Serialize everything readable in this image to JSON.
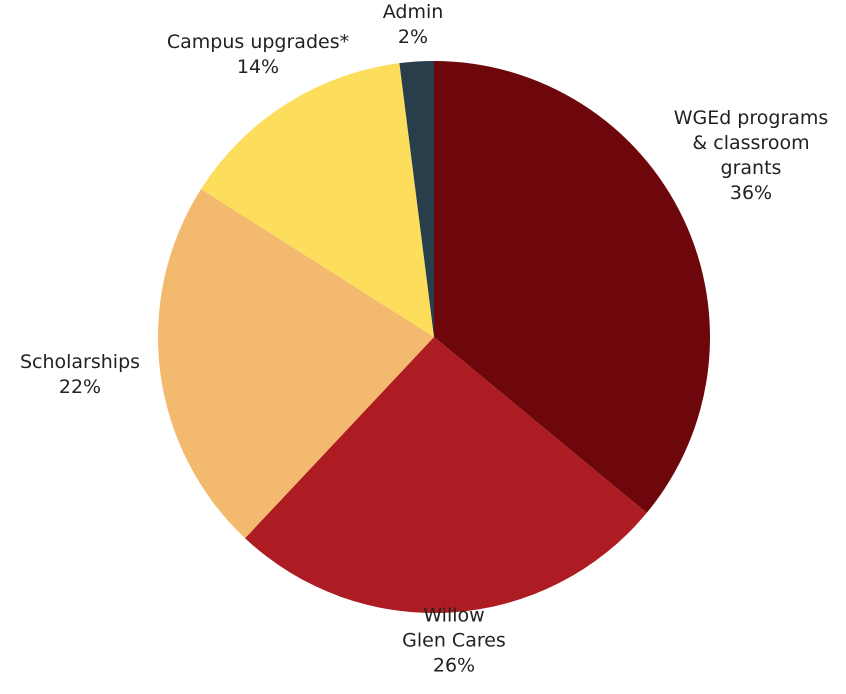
{
  "chart_data": {
    "type": "pie",
    "title": "",
    "start": "top",
    "direction": "clockwise",
    "slices": [
      {
        "label_lines": [
          "WGEd programs",
          "& classroom",
          "grants"
        ],
        "value_label": "36%",
        "value": 36,
        "color": "#6e070b"
      },
      {
        "label_lines": [
          "Willow",
          "Glen Cares"
        ],
        "value_label": "26%",
        "value": 26,
        "color": "#ac1c22"
      },
      {
        "label_lines": [
          "Scholarships"
        ],
        "value_label": "22%",
        "value": 22,
        "color": "#f2b96f"
      },
      {
        "label_lines": [
          "Campus upgrades*"
        ],
        "value_label": "14%",
        "value": 14,
        "color": "#fddd5c"
      },
      {
        "label_lines": [
          "Admin"
        ],
        "value_label": "2%",
        "value": 2,
        "color": "#283e4b"
      }
    ]
  }
}
